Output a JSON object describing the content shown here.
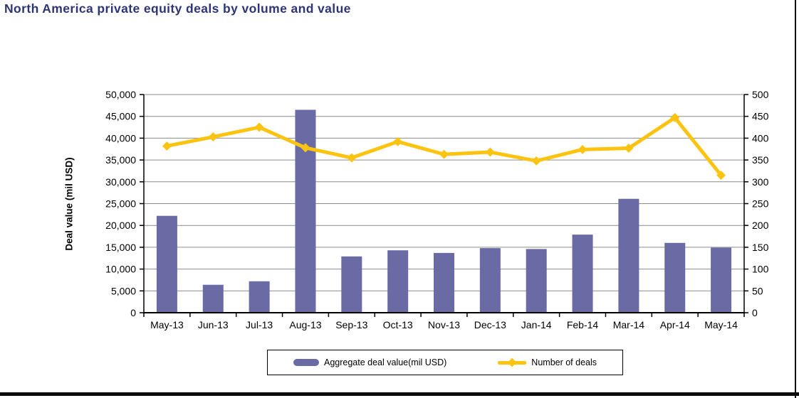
{
  "page": {
    "title": "North America private equity deals by volume and value"
  },
  "colors": {
    "title": "#2E3576",
    "bar": "#6A6BA4",
    "line": "#FCC411",
    "grid": "#8C8C8C",
    "axis": "#000000",
    "frame": "#0B0B0B"
  },
  "legend": {
    "bar_label": "Aggregate deal value(mil USD)",
    "line_label": "Number of deals"
  },
  "chart_data": {
    "type": "bar",
    "subtype": "combo-bar-line-dual-axis",
    "title": "North America private equity deals by volume and value",
    "categories": [
      "May-13",
      "Jun-13",
      "Jul-13",
      "Aug-13",
      "Sep-13",
      "Oct-13",
      "Nov-13",
      "Dec-13",
      "Jan-14",
      "Feb-14",
      "Mar-14",
      "Apr-14",
      "May-14"
    ],
    "series": [
      {
        "name": "Aggregate deal value(mil USD)",
        "kind": "bar",
        "axis": "left",
        "values": [
          22200,
          6400,
          7200,
          46500,
          12900,
          14300,
          13700,
          14800,
          14600,
          17900,
          26100,
          16000,
          14900
        ]
      },
      {
        "name": "Number of deals",
        "kind": "line",
        "axis": "right",
        "values": [
          382,
          403,
          425,
          378,
          355,
          392,
          363,
          368,
          348,
          374,
          377,
          447,
          315
        ]
      }
    ],
    "ylabel_left": "Deal value (mil USD)",
    "ylabel_right": "",
    "xlabel": "",
    "y_left": {
      "min": 0,
      "max": 50000,
      "step": 5000
    },
    "y_right": {
      "min": 0,
      "max": 500,
      "step": 50
    },
    "grid": true,
    "legend_position": "bottom"
  }
}
